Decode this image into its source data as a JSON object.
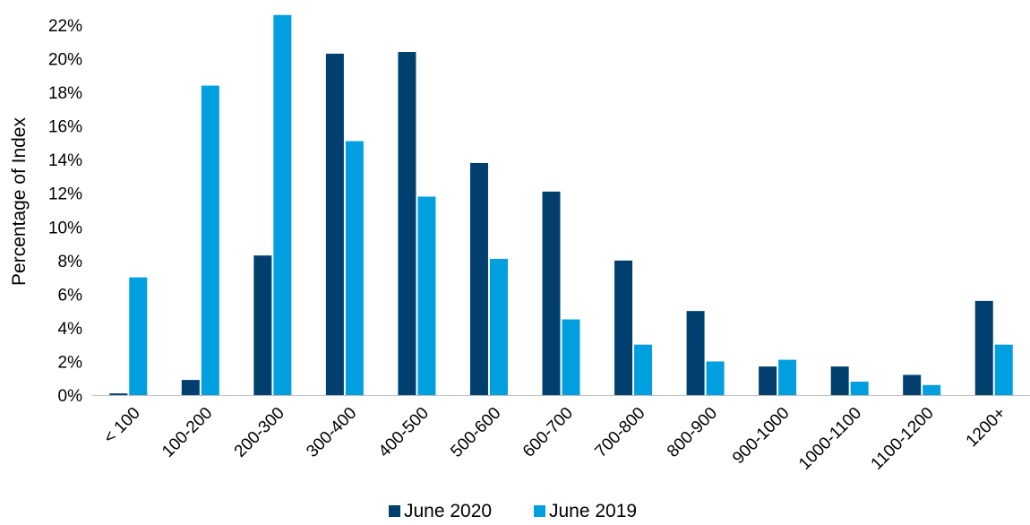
{
  "chart_data": {
    "type": "bar",
    "title": "",
    "xlabel": "",
    "ylabel": "Percentage of Index",
    "ylim": [
      0,
      22
    ],
    "y_ticks": [
      "0%",
      "2%",
      "4%",
      "6%",
      "8%",
      "10%",
      "12%",
      "14%",
      "16%",
      "18%",
      "20%",
      "22%"
    ],
    "categories": [
      "< 100",
      "100-200",
      "200-300",
      "300-400",
      "400-500",
      "500-600",
      "600-700",
      "700-800",
      "800-900",
      "900-1000",
      "1000-1100",
      "1100-1200",
      "1200+"
    ],
    "series": [
      {
        "name": "June 2020",
        "color": "#003f6e",
        "values": [
          0.1,
          0.9,
          8.3,
          20.3,
          20.4,
          13.8,
          12.1,
          8.0,
          5.0,
          1.7,
          1.7,
          1.2,
          5.6
        ]
      },
      {
        "name": "June 2019",
        "color": "#00a0e0",
        "values": [
          7.0,
          18.4,
          22.6,
          15.1,
          11.8,
          8.1,
          4.5,
          3.0,
          2.0,
          2.1,
          0.8,
          0.6,
          3.0
        ]
      }
    ],
    "grid": false,
    "legend_position": "bottom"
  }
}
